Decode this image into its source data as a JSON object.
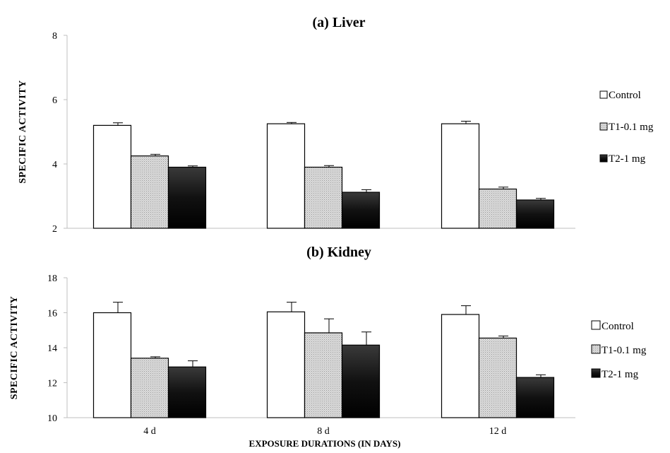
{
  "chart_data": [
    {
      "type": "bar",
      "title": "(a) Liver",
      "ylabel": "SPECIFIC ACTIVITY",
      "xlabel": "",
      "ylim": [
        2,
        8
      ],
      "yticks": [
        2,
        4,
        6,
        8
      ],
      "categories": [
        "4 d",
        "8 d",
        "12 d"
      ],
      "show_category_labels": false,
      "legend_position": "right",
      "series": [
        {
          "name": "Control",
          "values": [
            5.2,
            5.25,
            5.25
          ],
          "errors": [
            0.08,
            0.04,
            0.08
          ],
          "color": "#ffffff",
          "pattern": "none"
        },
        {
          "name": "T1-0.1 mg",
          "values": [
            4.25,
            3.9,
            3.22
          ],
          "errors": [
            0.05,
            0.05,
            0.06
          ],
          "color": "#d9d9d9",
          "pattern": "dots"
        },
        {
          "name": "T2-1 mg",
          "values": [
            3.9,
            3.12,
            2.88
          ],
          "errors": [
            0.04,
            0.08,
            0.05
          ],
          "color": "#1a1a1a",
          "pattern": "none"
        }
      ]
    },
    {
      "type": "bar",
      "title": "(b) Kidney",
      "ylabel": "SPECIFIC ACTIVITY",
      "xlabel": "EXPOSURE DURATIONS (IN DAYS)",
      "ylim": [
        10,
        18
      ],
      "yticks": [
        10,
        12,
        14,
        16,
        18
      ],
      "categories": [
        "4 d",
        "8 d",
        "12 d"
      ],
      "show_category_labels": true,
      "legend_position": "right",
      "series": [
        {
          "name": "Control",
          "values": [
            16.0,
            16.05,
            15.9
          ],
          "errors": [
            0.6,
            0.55,
            0.5
          ],
          "color": "#ffffff",
          "pattern": "none"
        },
        {
          "name": "T1-0.1 mg",
          "values": [
            13.4,
            14.85,
            14.55
          ],
          "errors": [
            0.08,
            0.8,
            0.12
          ],
          "color": "#d9d9d9",
          "pattern": "dots"
        },
        {
          "name": "T2-1 mg",
          "values": [
            12.9,
            14.15,
            12.3
          ],
          "errors": [
            0.35,
            0.75,
            0.15
          ],
          "color": "#111111",
          "pattern": "none"
        }
      ]
    }
  ]
}
